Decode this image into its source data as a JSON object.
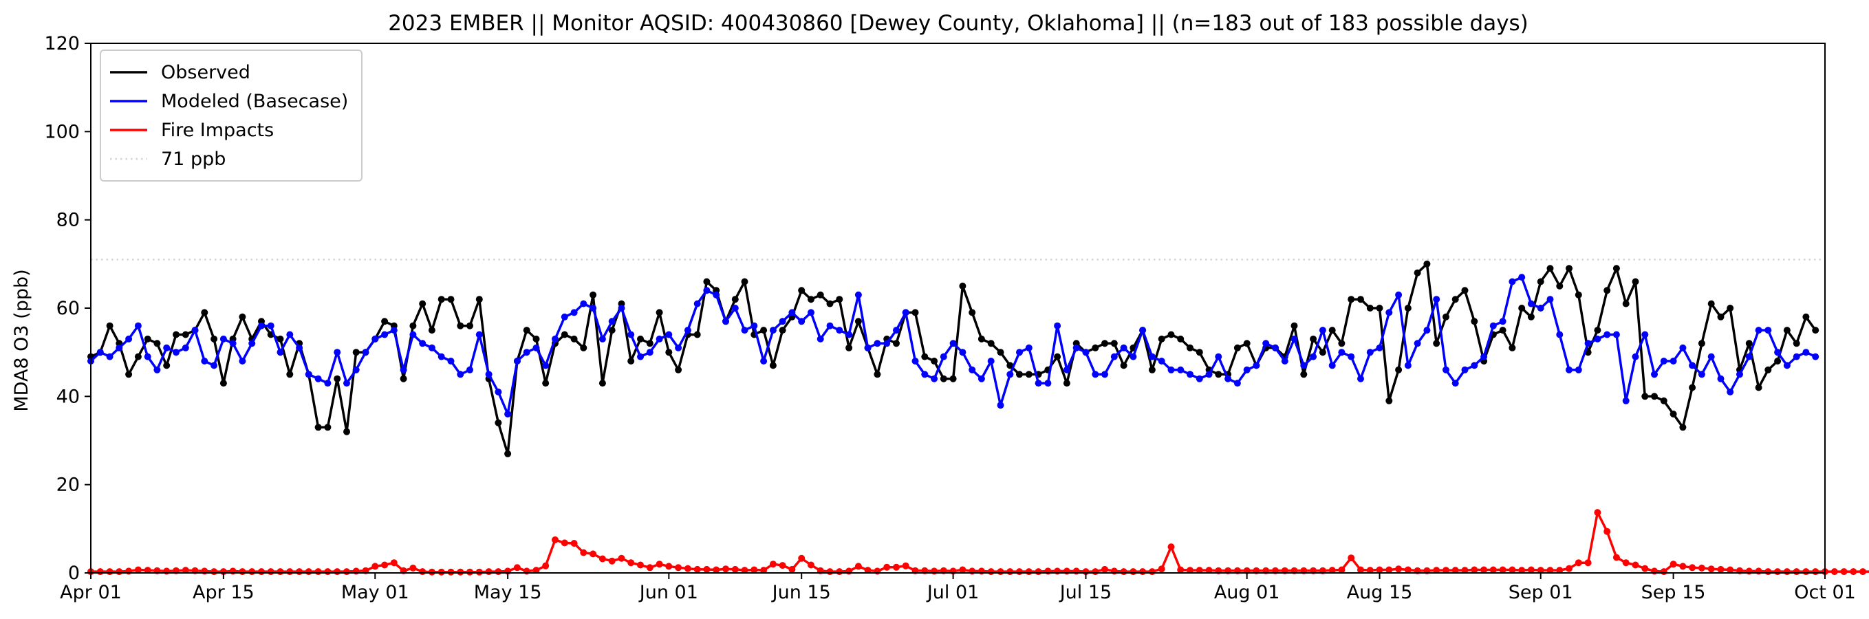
{
  "chart_data": {
    "type": "line",
    "title": "2023 EMBER || Monitor AQSID: 400430860 [Dewey County, Oklahoma] || (n=183 out of 183 possible days)",
    "xlabel": "",
    "ylabel": "MDA8 O3 (ppb)",
    "x_start": "2023-04-01",
    "x_end": "2023-10-01",
    "xlim": [
      "Apr 01",
      "Oct 01"
    ],
    "ylim": [
      0,
      120
    ],
    "x_tick_labels": [
      "Apr 01",
      "Apr 15",
      "May 01",
      "May 15",
      "Jun 01",
      "Jun 15",
      "Jul 01",
      "Jul 15",
      "Aug 01",
      "Aug 15",
      "Sep 01",
      "Sep 15",
      "Oct 01"
    ],
    "y_ticks": [
      0,
      20,
      40,
      60,
      80,
      100,
      120
    ],
    "grid": false,
    "legend_position": "top-left",
    "reference_line": {
      "name": "71 ppb",
      "value": 71,
      "color": "#d3d3d3",
      "style": "dotted"
    },
    "series": [
      {
        "name": "Observed",
        "color": "#000000",
        "values": [
          49,
          50,
          56,
          52,
          45,
          49,
          53,
          52,
          47,
          54,
          54,
          55,
          59,
          53,
          43,
          53,
          58,
          53,
          57,
          54,
          53,
          45,
          52,
          45,
          33,
          33,
          44,
          32,
          50,
          50,
          53,
          57,
          56,
          44,
          56,
          61,
          55,
          62,
          62,
          56,
          56,
          62,
          44,
          34,
          27,
          48,
          55,
          53,
          43,
          52,
          54,
          53,
          51,
          63,
          43,
          55,
          61,
          48,
          53,
          52,
          59,
          50,
          46,
          54,
          54,
          66,
          64,
          57,
          62,
          66,
          54,
          55,
          47,
          55,
          58,
          64,
          62,
          63,
          61,
          62,
          51,
          57,
          51,
          45,
          53,
          52,
          59,
          59,
          49,
          48,
          44,
          44,
          65,
          59,
          53,
          52,
          50,
          47,
          45,
          45,
          45,
          46,
          49,
          43,
          52,
          50,
          51,
          52,
          52,
          47,
          51,
          55,
          46,
          53,
          54,
          53,
          51,
          50,
          46,
          45,
          45,
          51,
          52,
          47,
          51,
          51,
          49,
          56,
          45,
          53,
          50,
          55,
          52,
          62,
          62,
          60,
          60,
          39,
          46,
          60,
          68,
          70,
          52,
          58,
          62,
          64,
          57,
          48,
          54,
          55,
          51,
          60,
          58,
          66,
          69,
          65,
          69,
          63,
          50,
          55,
          64,
          69,
          61,
          66,
          40,
          40,
          39,
          36,
          33,
          42,
          52,
          61,
          58,
          60,
          46,
          52,
          42,
          46,
          48,
          55,
          52,
          58,
          55
        ]
      },
      {
        "name": "Modeled (Basecase)",
        "color": "#0000ff",
        "values": [
          48,
          50,
          49,
          51,
          53,
          56,
          49,
          46,
          51,
          50,
          51,
          55,
          48,
          47,
          53,
          52,
          48,
          52,
          56,
          56,
          50,
          54,
          51,
          45,
          44,
          43,
          50,
          43,
          46,
          50,
          53,
          54,
          55,
          46,
          54,
          52,
          51,
          49,
          48,
          45,
          46,
          54,
          45,
          41,
          36,
          48,
          50,
          51,
          47,
          53,
          58,
          59,
          61,
          60,
          53,
          57,
          60,
          54,
          49,
          50,
          53,
          54,
          51,
          55,
          61,
          64,
          63,
          57,
          60,
          55,
          56,
          48,
          55,
          57,
          59,
          57,
          59,
          53,
          56,
          55,
          54,
          63,
          51,
          52,
          52,
          55,
          59,
          48,
          45,
          44,
          49,
          52,
          50,
          46,
          44,
          48,
          38,
          45,
          50,
          51,
          43,
          43,
          56,
          46,
          51,
          50,
          45,
          45,
          49,
          51,
          49,
          55,
          49,
          48,
          46,
          46,
          45,
          44,
          45,
          49,
          44,
          43,
          46,
          47,
          52,
          51,
          48,
          53,
          47,
          49,
          55,
          47,
          50,
          49,
          44,
          50,
          51,
          59,
          63,
          47,
          52,
          55,
          62,
          46,
          43,
          46,
          47,
          49,
          56,
          57,
          66,
          67,
          61,
          60,
          62,
          54,
          46,
          46,
          52,
          53,
          54,
          54,
          39,
          49,
          54,
          45,
          48,
          48,
          51,
          47,
          45,
          49,
          44,
          41,
          45,
          49,
          55,
          55,
          50,
          47,
          49,
          50,
          49
        ]
      },
      {
        "name": "Fire Impacts",
        "color": "#ff0000",
        "values": [
          0.3,
          0.3,
          0.3,
          0.3,
          0.4,
          0.7,
          0.6,
          0.5,
          0.4,
          0.5,
          0.6,
          0.5,
          0.4,
          0.3,
          0.3,
          0.4,
          0.3,
          0.3,
          0.3,
          0.3,
          0.3,
          0.3,
          0.3,
          0.3,
          0.3,
          0.3,
          0.3,
          0.3,
          0.4,
          0.5,
          1.5,
          1.8,
          2.3,
          0.5,
          1.1,
          0.3,
          0.2,
          0.2,
          0.2,
          0.2,
          0.2,
          0.2,
          0.3,
          0.3,
          0.4,
          1.2,
          0.4,
          0.6,
          1.6,
          7.5,
          6.8,
          6.7,
          4.6,
          4.3,
          3.2,
          2.7,
          3.3,
          2.3,
          1.8,
          1.2,
          2.0,
          1.5,
          1.2,
          1.0,
          0.8,
          0.8,
          0.7,
          0.9,
          0.8,
          0.6,
          0.7,
          0.6,
          2.0,
          1.7,
          0.8,
          3.3,
          1.8,
          0.5,
          0.3,
          0.3,
          0.4,
          1.5,
          0.6,
          0.4,
          1.3,
          1.3,
          1.6,
          0.5,
          0.5,
          0.4,
          0.5,
          0.4,
          0.7,
          0.4,
          0.4,
          0.3,
          0.3,
          0.3,
          0.3,
          0.3,
          0.3,
          0.4,
          0.4,
          0.4,
          0.4,
          0.3,
          0.3,
          0.8,
          0.4,
          0.3,
          0.3,
          0.3,
          0.3,
          0.9,
          5.9,
          0.7,
          0.6,
          0.6,
          0.6,
          0.5,
          0.5,
          0.5,
          0.5,
          0.5,
          0.5,
          0.5,
          0.5,
          0.5,
          0.5,
          0.5,
          0.5,
          0.6,
          0.7,
          3.4,
          0.7,
          0.6,
          0.7,
          0.7,
          0.9,
          0.7,
          0.5,
          0.5,
          0.6,
          0.6,
          0.6,
          0.6,
          0.7,
          0.7,
          0.7,
          0.7,
          0.7,
          0.6,
          0.7,
          0.6,
          0.6,
          0.6,
          1.0,
          2.3,
          2.3,
          13.7,
          9.4,
          3.5,
          2.3,
          1.8,
          1.0,
          0.4,
          0.3,
          2.0,
          1.5,
          1.2,
          1.1,
          0.9,
          0.8,
          0.7,
          0.5,
          0.4,
          0.4,
          0.3,
          0.3,
          0.3,
          0.3,
          0.3,
          0.3,
          0.3,
          0.3,
          0.3,
          0.3,
          0.3,
          0.3
        ]
      }
    ]
  }
}
